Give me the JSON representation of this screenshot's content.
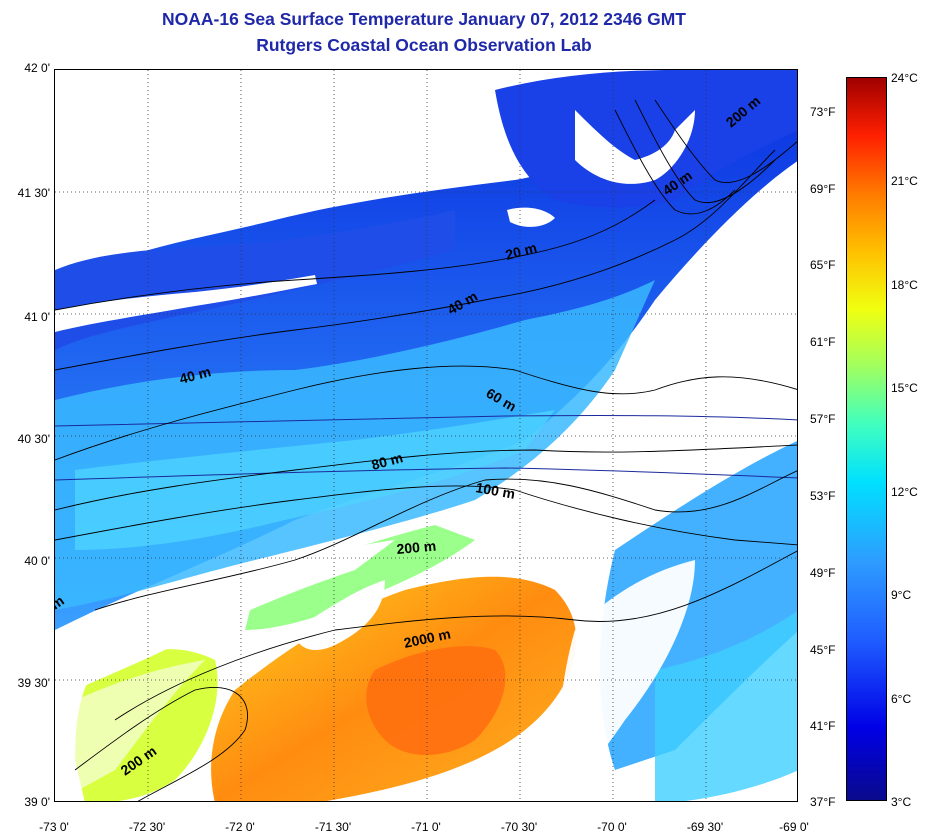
{
  "title": {
    "line1": "NOAA-16 Sea Surface Temperature January 07, 2012 2346 GMT",
    "line2": "Rutgers Coastal Ocean Observation Lab"
  },
  "axes": {
    "lat_labels": [
      "42 0'",
      "41 30'",
      "41 0'",
      "40 30'",
      "40 0'",
      "39 30'",
      "39 0'"
    ],
    "lon_labels": [
      "-73 0'",
      "-72 30'",
      "-72 0'",
      "-71 30'",
      "-71 0'",
      "-70 30'",
      "-70 0'",
      "-69 30'",
      "-69 0'"
    ],
    "lat_range": [
      39.0,
      42.0
    ],
    "lon_range": [
      -73.0,
      -69.0
    ],
    "grid": true
  },
  "colorbar": {
    "celsius_labels": [
      "24°C",
      "21°C",
      "18°C",
      "15°C",
      "12°C",
      "9°C",
      "6°C",
      "3°C"
    ],
    "fahrenheit_labels": [
      "73°F",
      "69°F",
      "65°F",
      "61°F",
      "57°F",
      "53°F",
      "49°F",
      "45°F",
      "41°F",
      "37°F"
    ],
    "range_celsius": [
      3,
      24
    ]
  },
  "contours": {
    "labels": [
      "200 m",
      "40 m",
      "20 m",
      "40 m",
      "40 m",
      "60 m",
      "80 m",
      "100 m",
      "200 m",
      "2000 m",
      "200 m",
      "m"
    ]
  },
  "colors": {
    "title": "#1f28a8",
    "cold": "#1e3cff",
    "cool": "#2e9cff",
    "mild": "#00e0ff",
    "warm": "#f0ff10",
    "hot": "#ff7a00"
  }
}
